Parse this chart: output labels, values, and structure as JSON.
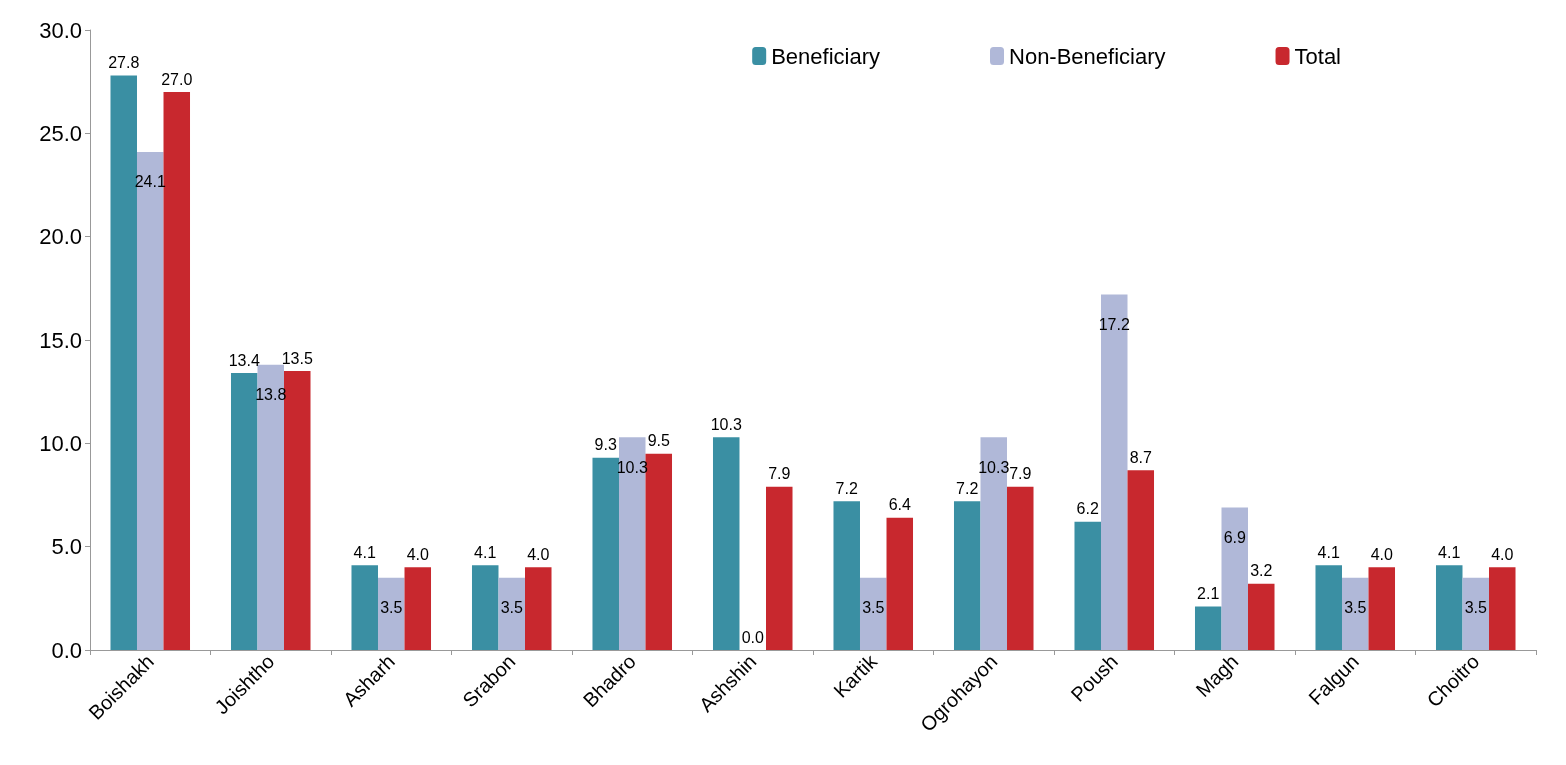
{
  "chart_data": {
    "type": "bar",
    "categories": [
      "Boishakh",
      "Joishtho",
      "Asharh",
      "Srabon",
      "Bhadro",
      "Ashshin",
      "Kartik",
      "Ogrohayon",
      "Poush",
      "Magh",
      "Falgun",
      "Choitro"
    ],
    "series": [
      {
        "name": "Beneficiary",
        "color": "#3a8fa3",
        "values": [
          27.8,
          13.4,
          4.1,
          4.1,
          9.3,
          10.3,
          7.2,
          7.2,
          6.2,
          2.1,
          4.1,
          4.1
        ],
        "value_labels": [
          "27.8",
          "13.4",
          "4.1",
          "4.1",
          "9.3",
          "10.3",
          "7.2",
          "7.2",
          "6.2",
          "2.1",
          "4.1",
          "4.1"
        ]
      },
      {
        "name": "Non-Beneficiary",
        "color": "#b0b8d8",
        "values": [
          24.1,
          13.8,
          3.5,
          3.5,
          10.3,
          0.0,
          3.5,
          10.3,
          17.2,
          6.9,
          3.5,
          3.5
        ],
        "value_labels": [
          "24.1",
          "13.8",
          "3.5",
          "3.5",
          "10.3",
          "0.0",
          "3.5",
          "10.3",
          "17.2",
          "6.9",
          "3.5",
          "3.5"
        ]
      },
      {
        "name": "Total",
        "color": "#c8282e",
        "values": [
          27.0,
          13.5,
          4.0,
          4.0,
          9.5,
          7.9,
          6.4,
          7.9,
          8.7,
          3.2,
          4.0,
          4.0
        ],
        "value_labels": [
          "27.0",
          "13.5",
          "4.0",
          "4.0",
          "9.5",
          "7.9",
          "6.4",
          "7.9",
          "8.7",
          "3.2",
          "4.0",
          "4.0"
        ]
      }
    ],
    "ylim": [
      0,
      30
    ],
    "yticks": [
      {
        "value": 0,
        "label": "0.0"
      },
      {
        "value": 5,
        "label": "5.0"
      },
      {
        "value": 10,
        "label": "10.0"
      },
      {
        "value": 15,
        "label": "15.0"
      },
      {
        "value": 20,
        "label": "20.0"
      },
      {
        "value": 25,
        "label": "25.0"
      },
      {
        "value": 30,
        "label": "30.0"
      }
    ],
    "grid": false,
    "legend": "top right"
  }
}
